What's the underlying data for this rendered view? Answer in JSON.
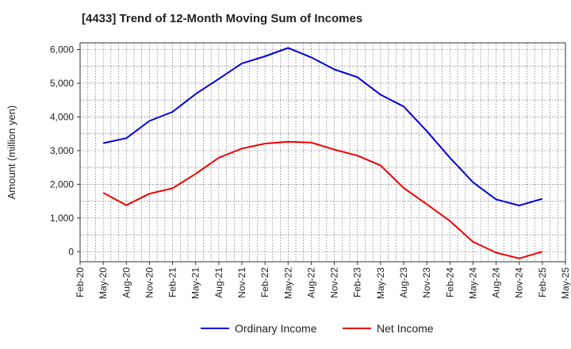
{
  "chart_data": {
    "type": "line",
    "title": "[4433]  Trend of 12-Month Moving Sum of Incomes",
    "xlabel": "",
    "ylabel": "Amount (million yen)",
    "ylim": [
      -300,
      6200
    ],
    "yticks": [
      0,
      1000,
      2000,
      3000,
      4000,
      5000,
      6000
    ],
    "ytick_labels": [
      "0",
      "1,000",
      "2,000",
      "3,000",
      "4,000",
      "5,000",
      "6,000"
    ],
    "xtick_labels": [
      "Feb-20",
      "May-20",
      "Aug-20",
      "Nov-20",
      "Feb-21",
      "May-21",
      "Aug-21",
      "Nov-21",
      "Feb-22",
      "May-22",
      "Aug-22",
      "Nov-22",
      "Feb-23",
      "May-23",
      "Aug-23",
      "Nov-23",
      "Feb-24",
      "May-24",
      "Aug-24",
      "Nov-24",
      "Feb-25",
      "May-25"
    ],
    "grid": true,
    "legend_position": "bottom",
    "series": [
      {
        "name": "Ordinary Income",
        "color": "#0000dd",
        "start_tick": 1,
        "values": [
          3220,
          3370,
          3880,
          4150,
          4680,
          5130,
          5590,
          5800,
          6050,
          5770,
          5410,
          5180,
          4660,
          4310,
          3580,
          2790,
          2060,
          1550,
          1370,
          1570
        ]
      },
      {
        "name": "Net Income",
        "color": "#ee0000",
        "start_tick": 1,
        "values": [
          1750,
          1380,
          1720,
          1880,
          2310,
          2790,
          3060,
          3210,
          3260,
          3240,
          3030,
          2850,
          2560,
          1890,
          1410,
          910,
          290,
          -30,
          -200,
          0
        ]
      }
    ]
  }
}
